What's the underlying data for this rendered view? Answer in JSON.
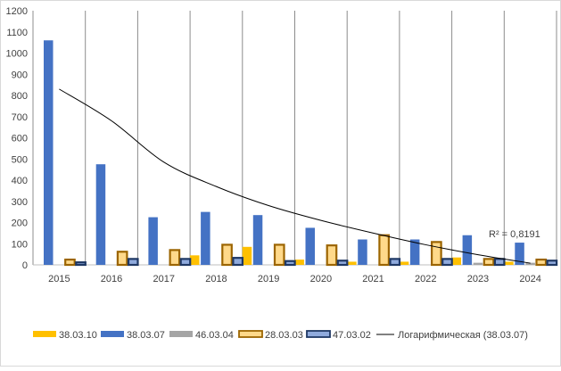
{
  "chart_data": {
    "type": "bar",
    "categories": [
      "2015",
      "2016",
      "2017",
      "2018",
      "2019",
      "2020",
      "2021",
      "2022",
      "2023",
      "2024"
    ],
    "ylim": [
      0,
      1200
    ],
    "yticks": [
      "0",
      "100",
      "200",
      "300",
      "400",
      "500",
      "600",
      "700",
      "800",
      "900",
      "1000",
      "1100",
      "1200"
    ],
    "grid": "vertical",
    "legend_position": "bottom",
    "series": [
      {
        "name": "38.03.10",
        "color": "#FFC000",
        "values": [
          0,
          0,
          0,
          45,
          85,
          25,
          15,
          15,
          35,
          15
        ]
      },
      {
        "name": "38.03.07",
        "color": "#4472C4",
        "values": [
          1060,
          475,
          225,
          250,
          235,
          175,
          120,
          120,
          140,
          105
        ]
      },
      {
        "name": "46.03.04",
        "color": "#A5A5A5",
        "values": [
          0,
          0,
          0,
          0,
          0,
          0,
          0,
          0,
          10,
          10
        ]
      },
      {
        "name": "28.03.03",
        "color": "#FFD98A",
        "stroke": "#9C6500",
        "values": [
          25,
          62,
          70,
          95,
          95,
          92,
          140,
          108,
          28,
          25
        ]
      },
      {
        "name": "47.03.02",
        "color": "#8FAADC",
        "stroke": "#1F3864",
        "values": [
          12,
          28,
          28,
          33,
          18,
          20,
          28,
          28,
          28,
          20
        ]
      }
    ],
    "trendline": {
      "name": "Логарифмическая (38.03.07)",
      "type": "logarithmic",
      "series": "38.03.07",
      "values": [
        830,
        680,
        485,
        370,
        280,
        210,
        150,
        95,
        48,
        8
      ],
      "r2_label": "R² = 0,8191"
    }
  }
}
